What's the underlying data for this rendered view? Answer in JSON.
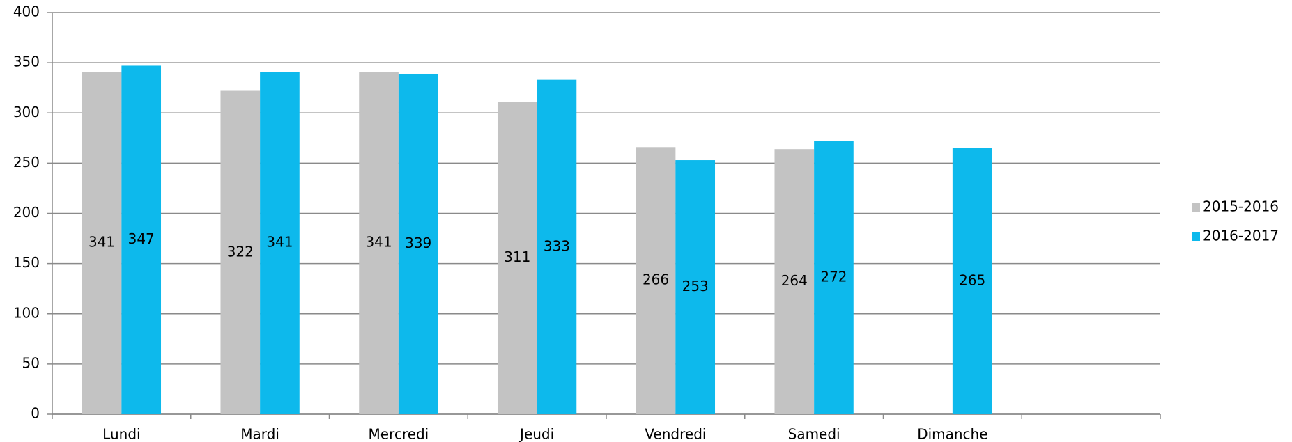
{
  "chart_data": {
    "type": "bar",
    "categories": [
      "Lundi",
      "Mardi",
      "Mercredi",
      "Jeudi",
      "Vendredi",
      "Samedi",
      "Dimanche",
      null
    ],
    "series": [
      {
        "name": "2015-2016",
        "color": "#c3c3c3",
        "values": [
          341,
          322,
          341,
          311,
          266,
          264,
          null,
          null
        ]
      },
      {
        "name": "2016-2017",
        "color": "#0db9ec",
        "values": [
          347,
          341,
          339,
          333,
          253,
          272,
          265,
          null
        ]
      }
    ],
    "ylim": [
      0,
      400
    ],
    "yticks": [
      0,
      50,
      100,
      150,
      200,
      250,
      300,
      350,
      400
    ],
    "grid": true,
    "legend": "right"
  }
}
